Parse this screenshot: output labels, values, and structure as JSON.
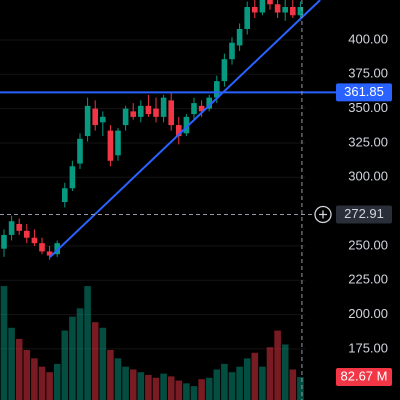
{
  "chart_data": {
    "type": "candlestick",
    "open": [
      248,
      258,
      266,
      261,
      256,
      252,
      246,
      244,
      282,
      292,
      310,
      330,
      350,
      340,
      334,
      316,
      338,
      348,
      344,
      352,
      350,
      344,
      356,
      338,
      332,
      346,
      352,
      350,
      358,
      370,
      386,
      396,
      408,
      424,
      420,
      430,
      426,
      420,
      424,
      418
    ],
    "high": [
      262,
      272,
      270,
      266,
      262,
      256,
      250,
      254,
      296,
      312,
      332,
      358,
      356,
      348,
      338,
      336,
      352,
      354,
      356,
      360,
      358,
      360,
      362,
      344,
      346,
      358,
      356,
      360,
      374,
      390,
      402,
      412,
      428,
      432,
      434,
      436,
      432,
      430,
      430,
      428
    ],
    "low": [
      242,
      254,
      258,
      252,
      250,
      244,
      240,
      242,
      278,
      290,
      306,
      326,
      334,
      330,
      308,
      312,
      334,
      342,
      340,
      344,
      340,
      340,
      334,
      324,
      330,
      342,
      344,
      348,
      354,
      366,
      382,
      392,
      404,
      416,
      418,
      422,
      416,
      414,
      416,
      414
    ],
    "close": [
      258,
      268,
      261,
      256,
      252,
      246,
      243,
      252,
      292,
      308,
      328,
      352,
      338,
      344,
      312,
      334,
      350,
      344,
      352,
      346,
      344,
      358,
      338,
      330,
      344,
      354,
      348,
      358,
      370,
      386,
      398,
      408,
      424,
      420,
      430,
      426,
      420,
      424,
      418,
      424
    ],
    "volume": [
      410,
      260,
      220,
      180,
      150,
      120,
      100,
      130,
      250,
      300,
      330,
      410,
      280,
      260,
      180,
      150,
      120,
      110,
      100,
      90,
      80,
      95,
      85,
      70,
      60,
      50,
      75,
      80,
      110,
      130,
      100,
      120,
      150,
      170,
      120,
      190,
      250,
      200,
      110,
      82.67
    ],
    "volume_label": "82.67 M",
    "ylim": [
      137.8,
      429.1
    ],
    "volume_ylim": [
      0,
      1440
    ],
    "yticks": [
      {
        "value": 175,
        "label": "175.00"
      },
      {
        "value": 200,
        "label": "200.00"
      },
      {
        "value": 225,
        "label": "225.00"
      },
      {
        "value": 250,
        "label": "250.00"
      },
      {
        "value": 300,
        "label": "300.00"
      },
      {
        "value": 325,
        "label": "325.00"
      },
      {
        "value": 350,
        "label": "350.00"
      },
      {
        "value": 375,
        "label": "375.00"
      },
      {
        "value": 400,
        "label": "400.00"
      }
    ],
    "hline": {
      "value": 361.85,
      "label": "361.85",
      "color": "#2962ff"
    },
    "crosshair": {
      "x": 39.2,
      "y": 272.91,
      "label": "272.91"
    },
    "trendline": {
      "x": [
        6.05,
        41.6
      ],
      "y": [
        241.9,
        429.1
      ],
      "color": "#2962ff"
    },
    "up_color": "#089981",
    "down_color": "#f23645",
    "grid": true
  }
}
